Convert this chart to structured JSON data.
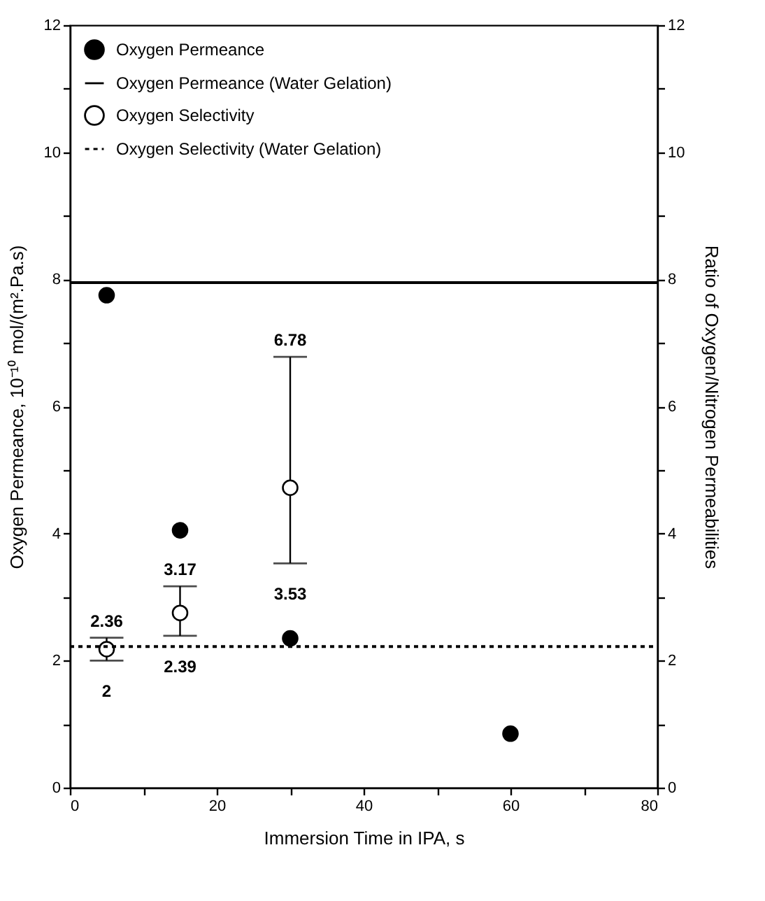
{
  "chart_data": {
    "type": "scatter",
    "xlabel": "Immersion  Time in IPA, s",
    "ylabel": "Oxygen Permeance, 10⁻¹⁰  mol/(m².Pa.s)",
    "y2label": "Ratio of Oxygen/Nitrogen Permeabilities",
    "series": [
      {
        "name": "Oxygen Permeance",
        "color": "#000000",
        "marker": "circle",
        "axis": "y",
        "x": [
          5,
          15,
          30,
          60
        ],
        "values": [
          7.75,
          4.05,
          2.35,
          0.85
        ]
      },
      {
        "name": "Oxygen Permeance (Water Gelation)",
        "type": "line",
        "color": "#000000",
        "line_style": "solid",
        "axis": "y",
        "x": [
          0,
          80
        ],
        "values": [
          7.95,
          7.95
        ]
      },
      {
        "name": "Oxygen Selectivity",
        "color": "#000000",
        "marker": "circle",
        "axis": "y2",
        "x": [
          5,
          15,
          30
        ],
        "values": [
          2.18,
          2.75,
          4.72
        ],
        "errors": [
          [
            2,
            2.36
          ],
          [
            2.39,
            3.17
          ],
          [
            3.53,
            6.78
          ]
        ]
      },
      {
        "name": "Oxygen Selectivity (Water Gelation)",
        "type": "line",
        "color": "#000000",
        "line_style": "dotted",
        "axis": "y2",
        "x": [
          0,
          80
        ],
        "values": [
          2.22,
          2.22
        ]
      }
    ],
    "annotations": [
      {
        "text": "2.36",
        "x": 5,
        "y": 2.36
      },
      {
        "text": "2",
        "x": 5,
        "y": 2
      },
      {
        "text": "3.17",
        "x": 15,
        "y": 3.17
      },
      {
        "text": "2.39",
        "x": 15,
        "y": 2.39
      },
      {
        "text": "6.78",
        "x": 30,
        "y": 6.78
      },
      {
        "text": "3.53",
        "x": 30,
        "y": 3.53
      }
    ],
    "xlim": [
      0,
      80
    ],
    "xticks": [
      0,
      {
        "value": 10,
        "label": null
      },
      20,
      {
        "value": 30,
        "label": null
      },
      40,
      {
        "value": 50,
        "label": null
      },
      60,
      {
        "value": 70,
        "label": null
      },
      80
    ],
    "ylim": [
      0,
      12
    ],
    "yticks": [
      0,
      {
        "value": 1,
        "label": null
      },
      2,
      {
        "value": 3,
        "label": null
      },
      4,
      {
        "value": 5,
        "label": null
      },
      6,
      {
        "value": 7,
        "label": null
      },
      8,
      {
        "value": 9,
        "label": null
      },
      10,
      {
        "value": 11,
        "label": null
      },
      12
    ],
    "y2lim": [
      0,
      12
    ],
    "y2ticks": [
      0,
      {
        "value": 1,
        "label": null
      },
      2,
      {
        "value": 3,
        "label": null
      },
      4,
      {
        "value": 5,
        "label": null
      },
      6,
      {
        "value": 7,
        "label": null
      },
      8,
      {
        "value": 9,
        "label": null
      },
      10,
      {
        "value": 11,
        "label": null
      },
      12
    ],
    "legend": "top left",
    "grid": false
  }
}
